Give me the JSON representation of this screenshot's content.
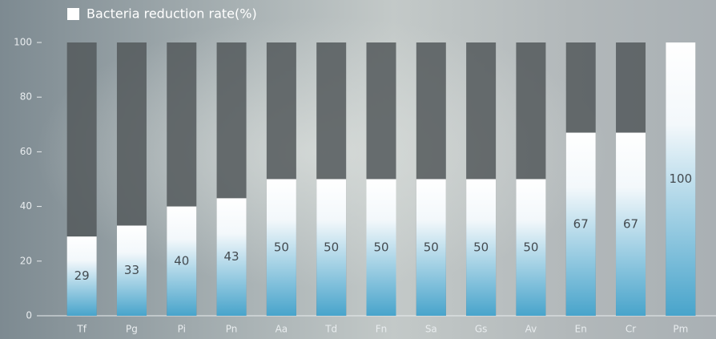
{
  "chart_data": {
    "type": "bar",
    "legend": "Bacteria reduction rate(%)",
    "categories": [
      "Tf",
      "Pg",
      "Pi",
      "Pn",
      "Aa",
      "Td",
      "Fn",
      "Sa",
      "Gs",
      "Av",
      "En",
      "Cr",
      "Pm"
    ],
    "values": [
      29,
      33,
      40,
      43,
      50,
      50,
      50,
      50,
      50,
      50,
      67,
      67,
      100
    ],
    "color": "#48a4cb",
    "ylim": [
      0,
      100
    ],
    "yticks": [
      0,
      20,
      40,
      60,
      80,
      100
    ]
  }
}
